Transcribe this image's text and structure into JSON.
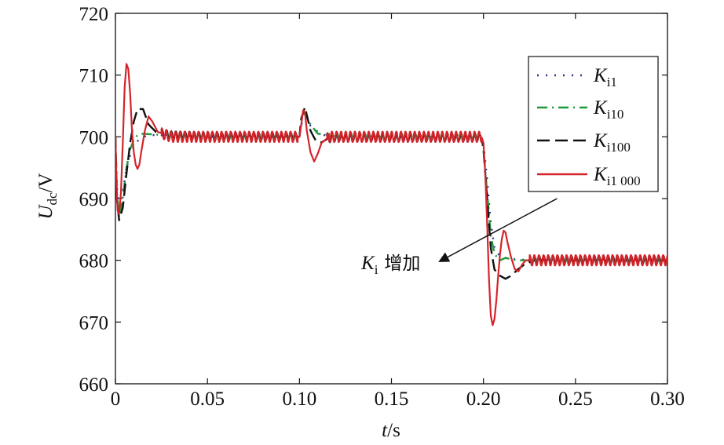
{
  "chart_data": {
    "type": "line",
    "xlabel": {
      "var": "t",
      "unit": "/s"
    },
    "ylabel": {
      "var": "U",
      "sub": "dc",
      "unit": "/V"
    },
    "xlim": [
      0,
      0.3
    ],
    "ylim": [
      660,
      720
    ],
    "xticks": [
      0,
      0.05,
      0.1,
      0.15,
      0.2,
      0.25,
      0.3
    ],
    "xtick_labels": [
      "0",
      "0.05",
      "0.10",
      "0.15",
      "0.20",
      "0.25",
      "0.30"
    ],
    "yticks": [
      660,
      670,
      680,
      690,
      700,
      710,
      720
    ],
    "ytick_labels": [
      "660",
      "670",
      "680",
      "690",
      "700",
      "710",
      "720"
    ],
    "grid": false,
    "legend_position": "top-right",
    "series": [
      {
        "name": "K",
        "sub": "i1",
        "color": "#2b2f8f",
        "dash": "2,9",
        "points": [
          [
            0,
            700
          ],
          [
            0.0008,
            692
          ],
          [
            0.002,
            688
          ],
          [
            0.004,
            691
          ],
          [
            0.006,
            695
          ],
          [
            0.008,
            697
          ],
          [
            0.01,
            698.5
          ],
          [
            0.012,
            699.3
          ],
          [
            0.015,
            700
          ],
          [
            0.02,
            700.3
          ],
          [
            0.03,
            700
          ],
          [
            0.05,
            700
          ],
          [
            0.09,
            700
          ],
          [
            0.1,
            700
          ],
          [
            0.101,
            702
          ],
          [
            0.103,
            703.2
          ],
          [
            0.106,
            701.8
          ],
          [
            0.11,
            700.8
          ],
          [
            0.114,
            700.2
          ],
          [
            0.12,
            700
          ],
          [
            0.15,
            700
          ],
          [
            0.199,
            700
          ],
          [
            0.2,
            699
          ],
          [
            0.202,
            693
          ],
          [
            0.204,
            686
          ],
          [
            0.206,
            682
          ],
          [
            0.209,
            680.6
          ],
          [
            0.212,
            680.4
          ],
          [
            0.216,
            680.2
          ],
          [
            0.22,
            680.1
          ],
          [
            0.25,
            680
          ],
          [
            0.3,
            680
          ]
        ],
        "ripple": 0.25
      },
      {
        "name": "K",
        "sub": "i10",
        "color": "#1c9a3c",
        "dash": "13,6,2,6",
        "points": [
          [
            0,
            700
          ],
          [
            0.0008,
            691
          ],
          [
            0.002,
            687
          ],
          [
            0.004,
            690
          ],
          [
            0.006,
            695
          ],
          [
            0.008,
            698
          ],
          [
            0.01,
            699.5
          ],
          [
            0.012,
            700.3
          ],
          [
            0.015,
            700.5
          ],
          [
            0.02,
            700.4
          ],
          [
            0.03,
            700.2
          ],
          [
            0.05,
            700
          ],
          [
            0.09,
            700
          ],
          [
            0.1,
            700
          ],
          [
            0.101,
            702.5
          ],
          [
            0.103,
            704
          ],
          [
            0.106,
            702
          ],
          [
            0.11,
            700.5
          ],
          [
            0.114,
            700.4
          ],
          [
            0.12,
            700.1
          ],
          [
            0.15,
            700
          ],
          [
            0.199,
            700
          ],
          [
            0.2,
            698
          ],
          [
            0.202,
            691
          ],
          [
            0.204,
            684
          ],
          [
            0.206,
            681
          ],
          [
            0.209,
            680
          ],
          [
            0.212,
            680.4
          ],
          [
            0.216,
            680.1
          ],
          [
            0.22,
            680
          ],
          [
            0.25,
            680
          ],
          [
            0.3,
            680
          ]
        ],
        "ripple": 0.5
      },
      {
        "name": "K",
        "sub": "i100",
        "color": "#111111",
        "dash": "16,7",
        "points": [
          [
            0,
            700
          ],
          [
            0.0008,
            690
          ],
          [
            0.002,
            686.5
          ],
          [
            0.004,
            688.5
          ],
          [
            0.006,
            694
          ],
          [
            0.008,
            699
          ],
          [
            0.01,
            702.5
          ],
          [
            0.012,
            704.5
          ],
          [
            0.015,
            704.5
          ],
          [
            0.018,
            702
          ],
          [
            0.022,
            700.8
          ],
          [
            0.03,
            700.2
          ],
          [
            0.05,
            700
          ],
          [
            0.09,
            700
          ],
          [
            0.1,
            700
          ],
          [
            0.101,
            703
          ],
          [
            0.103,
            704.8
          ],
          [
            0.106,
            701
          ],
          [
            0.109,
            699.3
          ],
          [
            0.112,
            699.1
          ],
          [
            0.116,
            699.8
          ],
          [
            0.12,
            700
          ],
          [
            0.15,
            700
          ],
          [
            0.199,
            700
          ],
          [
            0.2,
            698
          ],
          [
            0.202,
            690
          ],
          [
            0.204,
            682
          ],
          [
            0.206,
            678.5
          ],
          [
            0.209,
            677.5
          ],
          [
            0.212,
            677
          ],
          [
            0.215,
            677.5
          ],
          [
            0.219,
            678.6
          ],
          [
            0.223,
            679.5
          ],
          [
            0.23,
            680
          ],
          [
            0.25,
            680
          ],
          [
            0.3,
            680
          ]
        ],
        "ripple": 0.7
      },
      {
        "name": "K",
        "sub": "i1 000",
        "color": "#d4242b",
        "dash": "",
        "points": [
          [
            0,
            700
          ],
          [
            0.0006,
            692
          ],
          [
            0.0012,
            688
          ],
          [
            0.002,
            687.5
          ],
          [
            0.003,
            691
          ],
          [
            0.004,
            699
          ],
          [
            0.005,
            708
          ],
          [
            0.006,
            711.8
          ],
          [
            0.007,
            711
          ],
          [
            0.008,
            707
          ],
          [
            0.009,
            701
          ],
          [
            0.01,
            697.5
          ],
          [
            0.011,
            695.5
          ],
          [
            0.012,
            694.8
          ],
          [
            0.013,
            695.5
          ],
          [
            0.014,
            697.5
          ],
          [
            0.016,
            701
          ],
          [
            0.018,
            703.3
          ],
          [
            0.02,
            702.5
          ],
          [
            0.023,
            700.8
          ],
          [
            0.03,
            700
          ],
          [
            0.05,
            700
          ],
          [
            0.09,
            700
          ],
          [
            0.1,
            700
          ],
          [
            0.101,
            702
          ],
          [
            0.102,
            704.3
          ],
          [
            0.103,
            704
          ],
          [
            0.104,
            701
          ],
          [
            0.106,
            697.5
          ],
          [
            0.108,
            696
          ],
          [
            0.11,
            697.3
          ],
          [
            0.112,
            699
          ],
          [
            0.116,
            700
          ],
          [
            0.12,
            700
          ],
          [
            0.15,
            700
          ],
          [
            0.199,
            700
          ],
          [
            0.2,
            699
          ],
          [
            0.201,
            694
          ],
          [
            0.202,
            686
          ],
          [
            0.203,
            677
          ],
          [
            0.204,
            671
          ],
          [
            0.205,
            669.5
          ],
          [
            0.206,
            670.5
          ],
          [
            0.207,
            673.5
          ],
          [
            0.208,
            677.5
          ],
          [
            0.209,
            681
          ],
          [
            0.21,
            683.5
          ],
          [
            0.211,
            684.8
          ],
          [
            0.212,
            684.5
          ],
          [
            0.213,
            683
          ],
          [
            0.215,
            680.5
          ],
          [
            0.217,
            678.6
          ],
          [
            0.219,
            678.2
          ],
          [
            0.221,
            679.3
          ],
          [
            0.223,
            680
          ],
          [
            0.23,
            680
          ],
          [
            0.25,
            680
          ],
          [
            0.3,
            680
          ]
        ],
        "ripple": 0.85
      }
    ],
    "annotation": {
      "text_var": "K",
      "text_sub": "i",
      "text_rest": "增加",
      "arrow_from": [
        0.24,
        690
      ],
      "arrow_to": [
        0.176,
        679.8
      ]
    }
  }
}
